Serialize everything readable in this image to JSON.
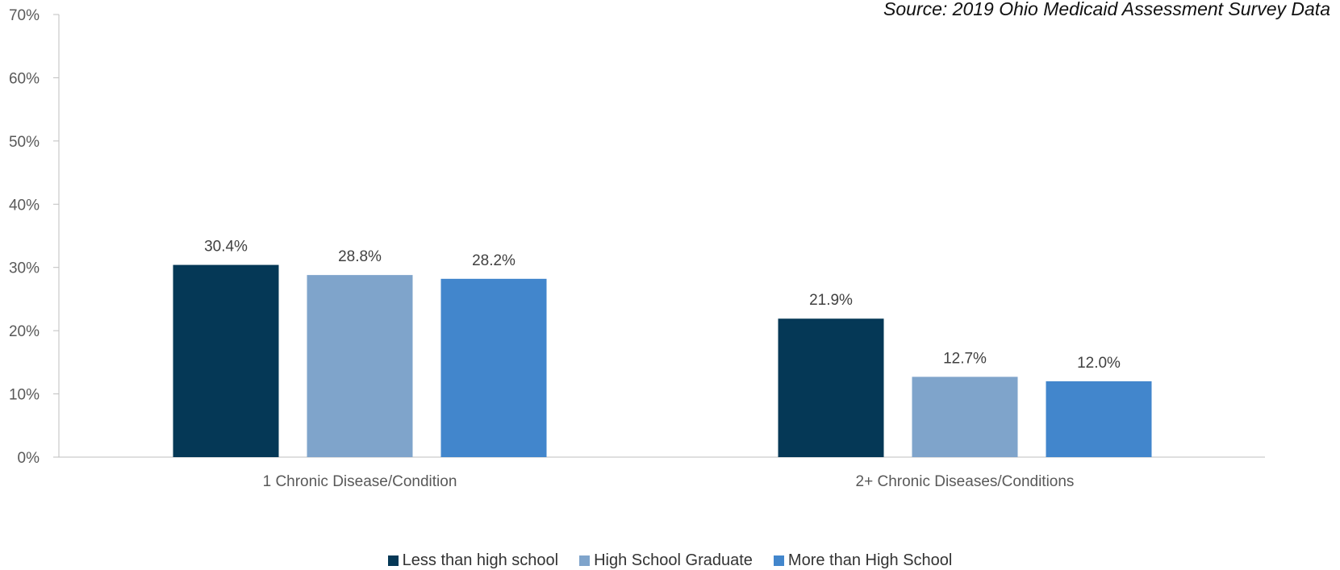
{
  "source_note": "Source: 2019 Ohio Medicaid Assessment Survey Data",
  "chart_data": {
    "type": "bar",
    "title": "",
    "xlabel": "",
    "ylabel": "",
    "categories": [
      "1 Chronic Disease/Condition",
      "2+ Chronic Diseases/Conditions"
    ],
    "series": [
      {
        "name": "Less than high school",
        "values": [
          30.4,
          21.9
        ],
        "color": "#053856",
        "labels": [
          "30.4%",
          "21.9%"
        ]
      },
      {
        "name": "High School Graduate",
        "values": [
          28.8,
          12.7
        ],
        "color": "#7fa4cb",
        "labels": [
          "28.8%",
          "12.7%"
        ]
      },
      {
        "name": "More than High School",
        "values": [
          28.2,
          12.0
        ],
        "color": "#4286cc",
        "labels": [
          "28.2%",
          "12.0%"
        ]
      }
    ],
    "ylim": [
      0,
      70
    ],
    "yticks": [
      0,
      10,
      20,
      30,
      40,
      50,
      60,
      70
    ],
    "ytick_labels": [
      "0%",
      "10%",
      "20%",
      "30%",
      "40%",
      "50%",
      "60%",
      "70%"
    ],
    "grid": false,
    "legend_position": "bottom"
  }
}
